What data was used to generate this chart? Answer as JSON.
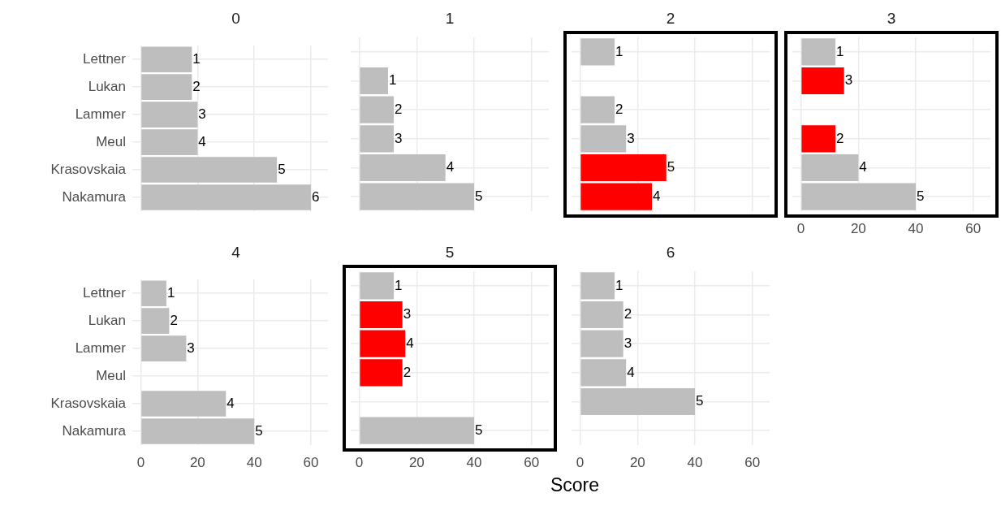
{
  "chart_data": [
    {
      "type": "bar",
      "orientation": "horizontal",
      "title": "0",
      "categories": [
        "Lettner",
        "Lukan",
        "Lammer",
        "Meul",
        "Krasovskaia",
        "Nakamura"
      ],
      "values": [
        18,
        18,
        20,
        20,
        48,
        60
      ],
      "colors": [
        "#bebebe",
        "#bebebe",
        "#bebebe",
        "#bebebe",
        "#bebebe",
        "#bebebe"
      ],
      "annotations": [
        {
          "text": "1",
          "x": 18,
          "y": "Lettner"
        },
        {
          "text": "2",
          "x": 18,
          "y": "Lukan"
        },
        {
          "text": "3",
          "x": 20,
          "y": "Lammer"
        },
        {
          "text": "4",
          "x": 20,
          "y": "Meul"
        },
        {
          "text": "5",
          "x": 48,
          "y": "Krasovskaia"
        },
        {
          "text": "6",
          "x": 60,
          "y": "Nakamura"
        }
      ],
      "xlim": [
        -3,
        66
      ],
      "xticks": [
        0,
        20,
        40,
        60
      ],
      "grid": true,
      "tick_labels": "y"
    },
    {
      "type": "bar",
      "orientation": "horizontal",
      "title": "1",
      "categories": [
        "Lettner",
        "Lukan",
        "Lammer",
        "Meul",
        "Krasovskaia",
        "Nakamura"
      ],
      "values": [
        null,
        10,
        12,
        12,
        30,
        40
      ],
      "colors": [
        "#bebebe",
        "#bebebe",
        "#bebebe",
        "#bebebe",
        "#bebebe",
        "#bebebe"
      ],
      "annotations": [
        {
          "text": "1",
          "x": 10,
          "y": "Lukan"
        },
        {
          "text": "2",
          "x": 12,
          "y": "Lammer"
        },
        {
          "text": "3",
          "x": 12,
          "y": "Meul"
        },
        {
          "text": "4",
          "x": 30,
          "y": "Krasovskaia"
        },
        {
          "text": "5",
          "x": 40,
          "y": "Nakamura"
        }
      ],
      "xlim": [
        -3,
        66
      ],
      "xticks": [
        0,
        20,
        40,
        60
      ],
      "grid": true,
      "tick_labels": false
    },
    {
      "type": "bar",
      "orientation": "horizontal",
      "title": "2",
      "categories": [
        "Lettner",
        "Lukan",
        "Lammer",
        "Meul",
        "Krasovskaia",
        "Nakamura"
      ],
      "values": [
        12,
        null,
        12,
        16,
        30,
        25
      ],
      "colors": [
        "#bebebe",
        "#bebebe",
        "#bebebe",
        "#bebebe",
        "#ff0000",
        "#ff0000"
      ],
      "annotations": [
        {
          "text": "1",
          "x": 12,
          "y": "Lettner"
        },
        {
          "text": "2",
          "x": 12,
          "y": "Lammer"
        },
        {
          "text": "3",
          "x": 16,
          "y": "Meul"
        },
        {
          "text": "5",
          "x": 30,
          "y": "Krasovskaia"
        },
        {
          "text": "4",
          "x": 25,
          "y": "Nakamura"
        }
      ],
      "xlim": [
        -3,
        66
      ],
      "xticks": [
        0,
        20,
        40,
        60
      ],
      "grid": true,
      "tick_labels": false
    },
    {
      "type": "bar",
      "orientation": "horizontal",
      "title": "3",
      "categories": [
        "Lettner",
        "Lukan",
        "Lammer",
        "Meul",
        "Krasovskaia",
        "Nakamura"
      ],
      "values": [
        12,
        15,
        null,
        12,
        20,
        40
      ],
      "colors": [
        "#bebebe",
        "#ff0000",
        "#bebebe",
        "#ff0000",
        "#bebebe",
        "#bebebe"
      ],
      "annotations": [
        {
          "text": "1",
          "x": 12,
          "y": "Lettner"
        },
        {
          "text": "3",
          "x": 15,
          "y": "Lukan"
        },
        {
          "text": "2",
          "x": 12,
          "y": "Meul"
        },
        {
          "text": "4",
          "x": 20,
          "y": "Krasovskaia"
        },
        {
          "text": "5",
          "x": 40,
          "y": "Nakamura"
        }
      ],
      "xlim": [
        -3,
        66
      ],
      "xticks": [
        0,
        20,
        40,
        60
      ],
      "grid": true,
      "tick_labels": "x"
    },
    {
      "type": "bar",
      "orientation": "horizontal",
      "title": "4",
      "categories": [
        "Lettner",
        "Lukan",
        "Lammer",
        "Meul",
        "Krasovskaia",
        "Nakamura"
      ],
      "values": [
        9,
        10,
        16,
        null,
        30,
        40
      ],
      "colors": [
        "#bebebe",
        "#bebebe",
        "#bebebe",
        "#bebebe",
        "#bebebe",
        "#bebebe"
      ],
      "annotations": [
        {
          "text": "1",
          "x": 9,
          "y": "Lettner"
        },
        {
          "text": "2",
          "x": 10,
          "y": "Lukan"
        },
        {
          "text": "3",
          "x": 16,
          "y": "Lammer"
        },
        {
          "text": "4",
          "x": 30,
          "y": "Krasovskaia"
        },
        {
          "text": "5",
          "x": 40,
          "y": "Nakamura"
        }
      ],
      "xlim": [
        -3,
        66
      ],
      "xticks": [
        0,
        20,
        40,
        60
      ],
      "grid": true
    },
    {
      "type": "bar",
      "orientation": "horizontal",
      "title": "5",
      "xlabel": "Score",
      "categories": [
        "Lettner",
        "Lukan",
        "Lammer",
        "Meul",
        "Krasovskaia",
        "Nakamura"
      ],
      "values": [
        12,
        15,
        16,
        15,
        null,
        40
      ],
      "colors": [
        "#bebebe",
        "#ff0000",
        "#ff0000",
        "#ff0000",
        "#bebebe",
        "#bebebe"
      ],
      "annotations": [
        {
          "text": "1",
          "x": 12,
          "y": "Lettner"
        },
        {
          "text": "3",
          "x": 15,
          "y": "Lukan"
        },
        {
          "text": "4",
          "x": 16,
          "y": "Lammer"
        },
        {
          "text": "2",
          "x": 15,
          "y": "Meul"
        },
        {
          "text": "5",
          "x": 40,
          "y": "Nakamura"
        }
      ],
      "xlim": [
        -3,
        66
      ],
      "xticks": [
        0,
        20,
        40,
        60
      ],
      "grid": true,
      "tick_labels": "x"
    },
    {
      "type": "bar",
      "orientation": "horizontal",
      "title": "6",
      "categories": [
        "Lettner",
        "Lukan",
        "Lammer",
        "Meul",
        "Krasovskaia",
        "Nakamura"
      ],
      "values": [
        12,
        15,
        15,
        16,
        40,
        null
      ],
      "colors": [
        "#bebebe",
        "#bebebe",
        "#bebebe",
        "#bebebe",
        "#bebebe",
        "#bebebe"
      ],
      "annotations": [
        {
          "text": "1",
          "x": 12,
          "y": "Lettner"
        },
        {
          "text": "2",
          "x": 15,
          "y": "Lukan"
        },
        {
          "text": "3",
          "x": 15,
          "y": "Lammer"
        },
        {
          "text": "4",
          "x": 16,
          "y": "Meul"
        },
        {
          "text": "5",
          "x": 40,
          "y": "Krasovskaia"
        }
      ],
      "xlim": [
        -3,
        66
      ],
      "xticks": [
        0,
        20,
        40,
        60
      ],
      "grid": true,
      "tick_labels": "x"
    }
  ]
}
